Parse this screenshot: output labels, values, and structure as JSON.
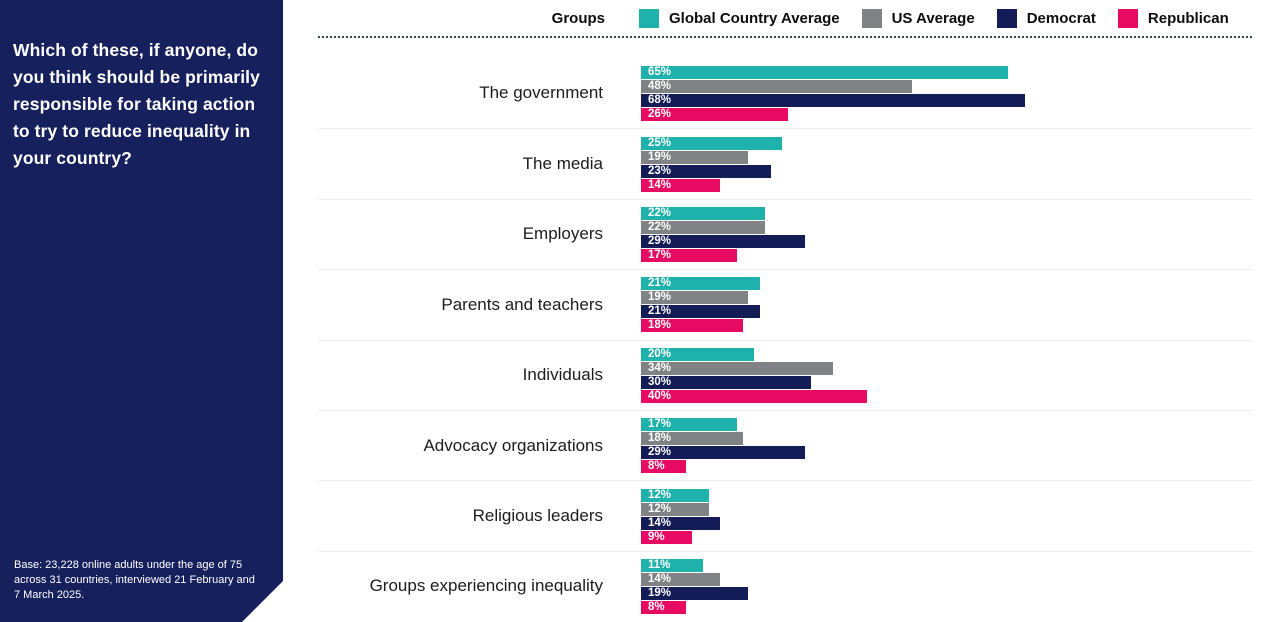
{
  "sidebar": {
    "question": "Which of these, if anyone, do you think should be primarily responsible for taking action to try to reduce inequality in your country?",
    "base_note": "Base: 23,228 online adults under the age of 75 across 31 countries, interviewed 21 February and 7 March 2025.",
    "background_color": "#16205d"
  },
  "legend": {
    "label": "Groups"
  },
  "colors": {
    "dotted_divider": "#2b4960",
    "row_separator": "#ededed",
    "value_label_text": "#ffffff"
  },
  "chart_data": {
    "type": "bar",
    "orientation": "horizontal",
    "title": "",
    "value_unit": "%",
    "legend_position": "top",
    "value_labels": "inside-left",
    "xlim": [
      0,
      110
    ],
    "grid": false,
    "categories": [
      "The government",
      "The media",
      "Employers",
      "Parents and teachers",
      "Individuals",
      "Advocacy organizations",
      "Religious leaders",
      "Groups experiencing inequality"
    ],
    "series": [
      {
        "name": "Global Country Average",
        "color": "#1fb1ab",
        "values": [
          65,
          25,
          22,
          21,
          20,
          17,
          12,
          11
        ]
      },
      {
        "name": "US Average",
        "color": "#808285",
        "values": [
          48,
          19,
          22,
          19,
          34,
          18,
          12,
          14
        ]
      },
      {
        "name": "Democrat",
        "color": "#131c56",
        "values": [
          68,
          23,
          29,
          21,
          30,
          29,
          14,
          19
        ]
      },
      {
        "name": "Republican",
        "color": "#e60a62",
        "values": [
          26,
          14,
          17,
          18,
          40,
          8,
          9,
          8
        ]
      }
    ]
  }
}
